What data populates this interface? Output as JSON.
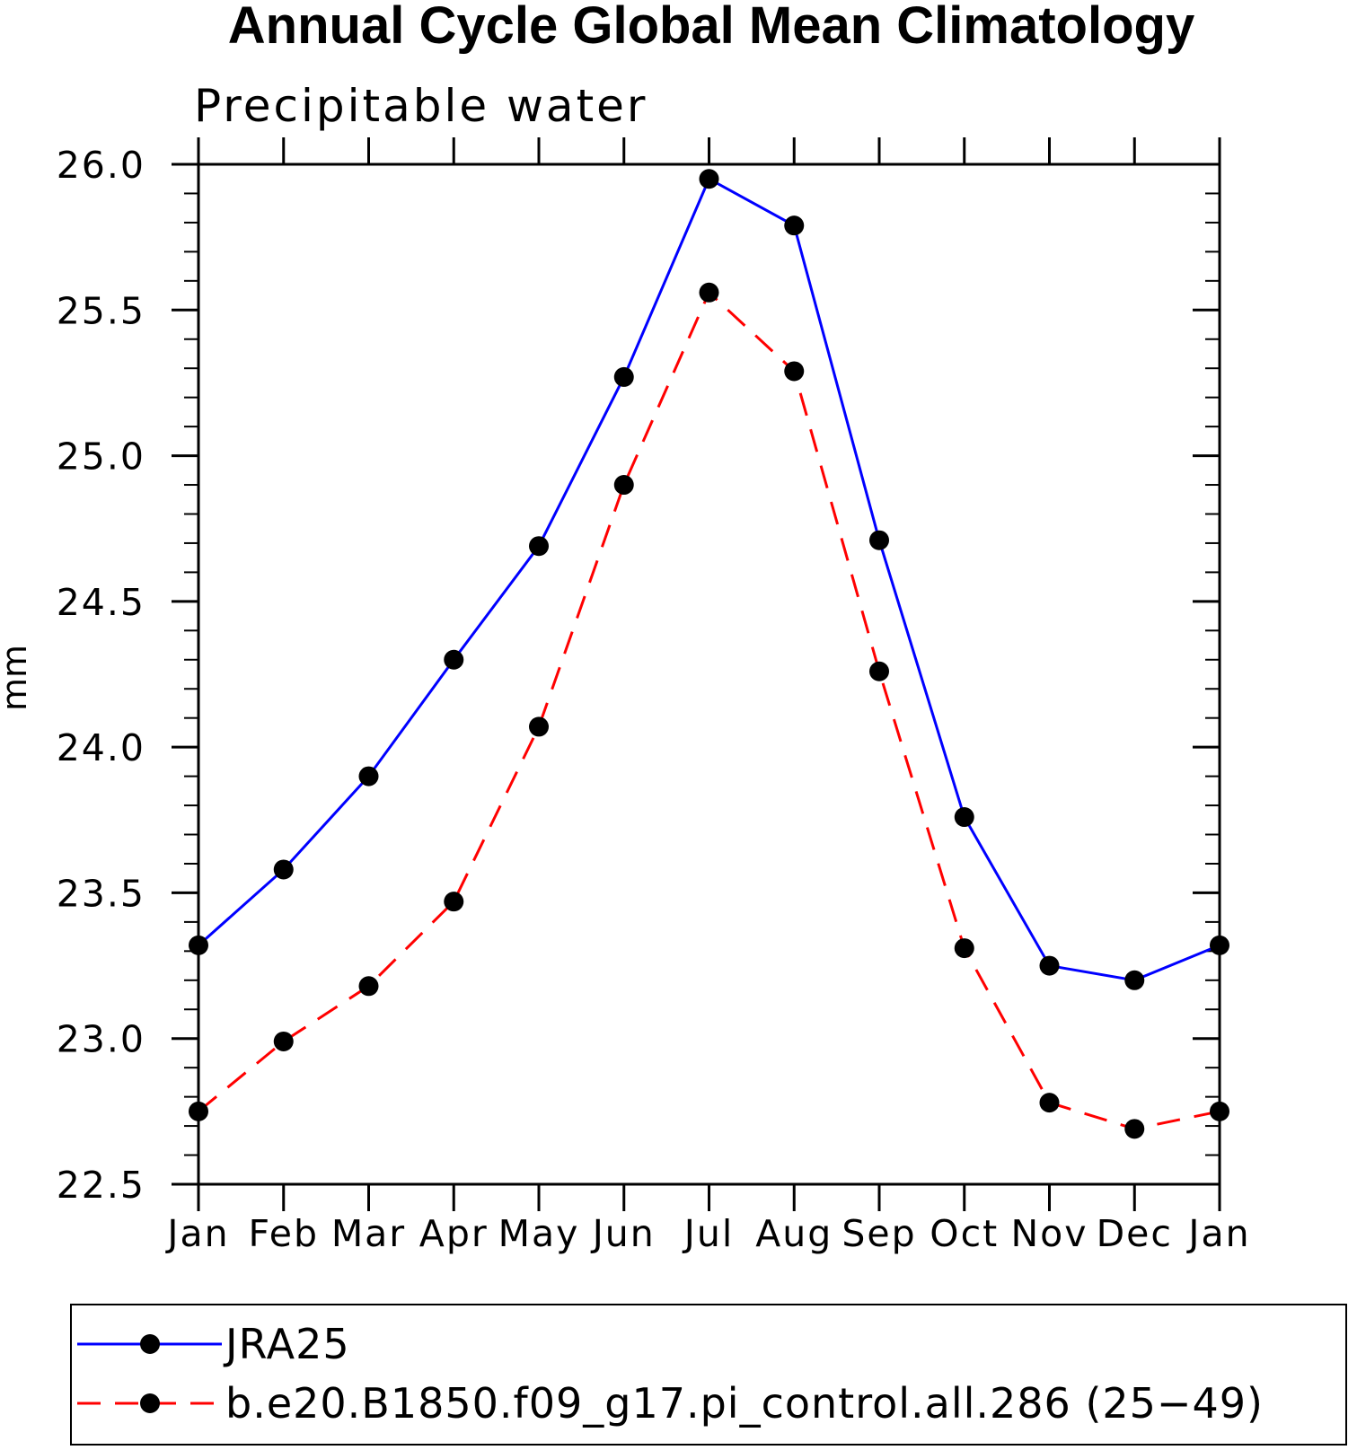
{
  "chart_data": {
    "type": "line",
    "title": "Annual Cycle Global Mean Climatology",
    "subtitle": "Precipitable water",
    "xlabel": "",
    "ylabel": "mm",
    "categories": [
      "Jan",
      "Feb",
      "Mar",
      "Apr",
      "May",
      "Jun",
      "Jul",
      "Aug",
      "Sep",
      "Oct",
      "Nov",
      "Dec",
      "Jan"
    ],
    "ylim": [
      22.5,
      26.0
    ],
    "yticks": [
      "22.5",
      "23.0",
      "23.5",
      "24.0",
      "24.5",
      "25.0",
      "25.5",
      "26.0"
    ],
    "grid": false,
    "legend_position": "bottom",
    "series": [
      {
        "name": "JRA25",
        "color": "#0000ff",
        "style": "solid",
        "values": [
          23.32,
          23.58,
          23.9,
          24.3,
          24.69,
          25.27,
          25.95,
          25.79,
          24.71,
          23.76,
          23.25,
          23.2,
          23.32
        ]
      },
      {
        "name": "b.e20.B1850.f09_g17.pi_control.all.286 (25−49)",
        "color": "#ff0000",
        "style": "dashed",
        "values": [
          22.75,
          22.99,
          23.18,
          23.47,
          24.07,
          24.9,
          25.56,
          25.29,
          24.26,
          23.31,
          22.78,
          22.69,
          22.75
        ]
      }
    ]
  }
}
